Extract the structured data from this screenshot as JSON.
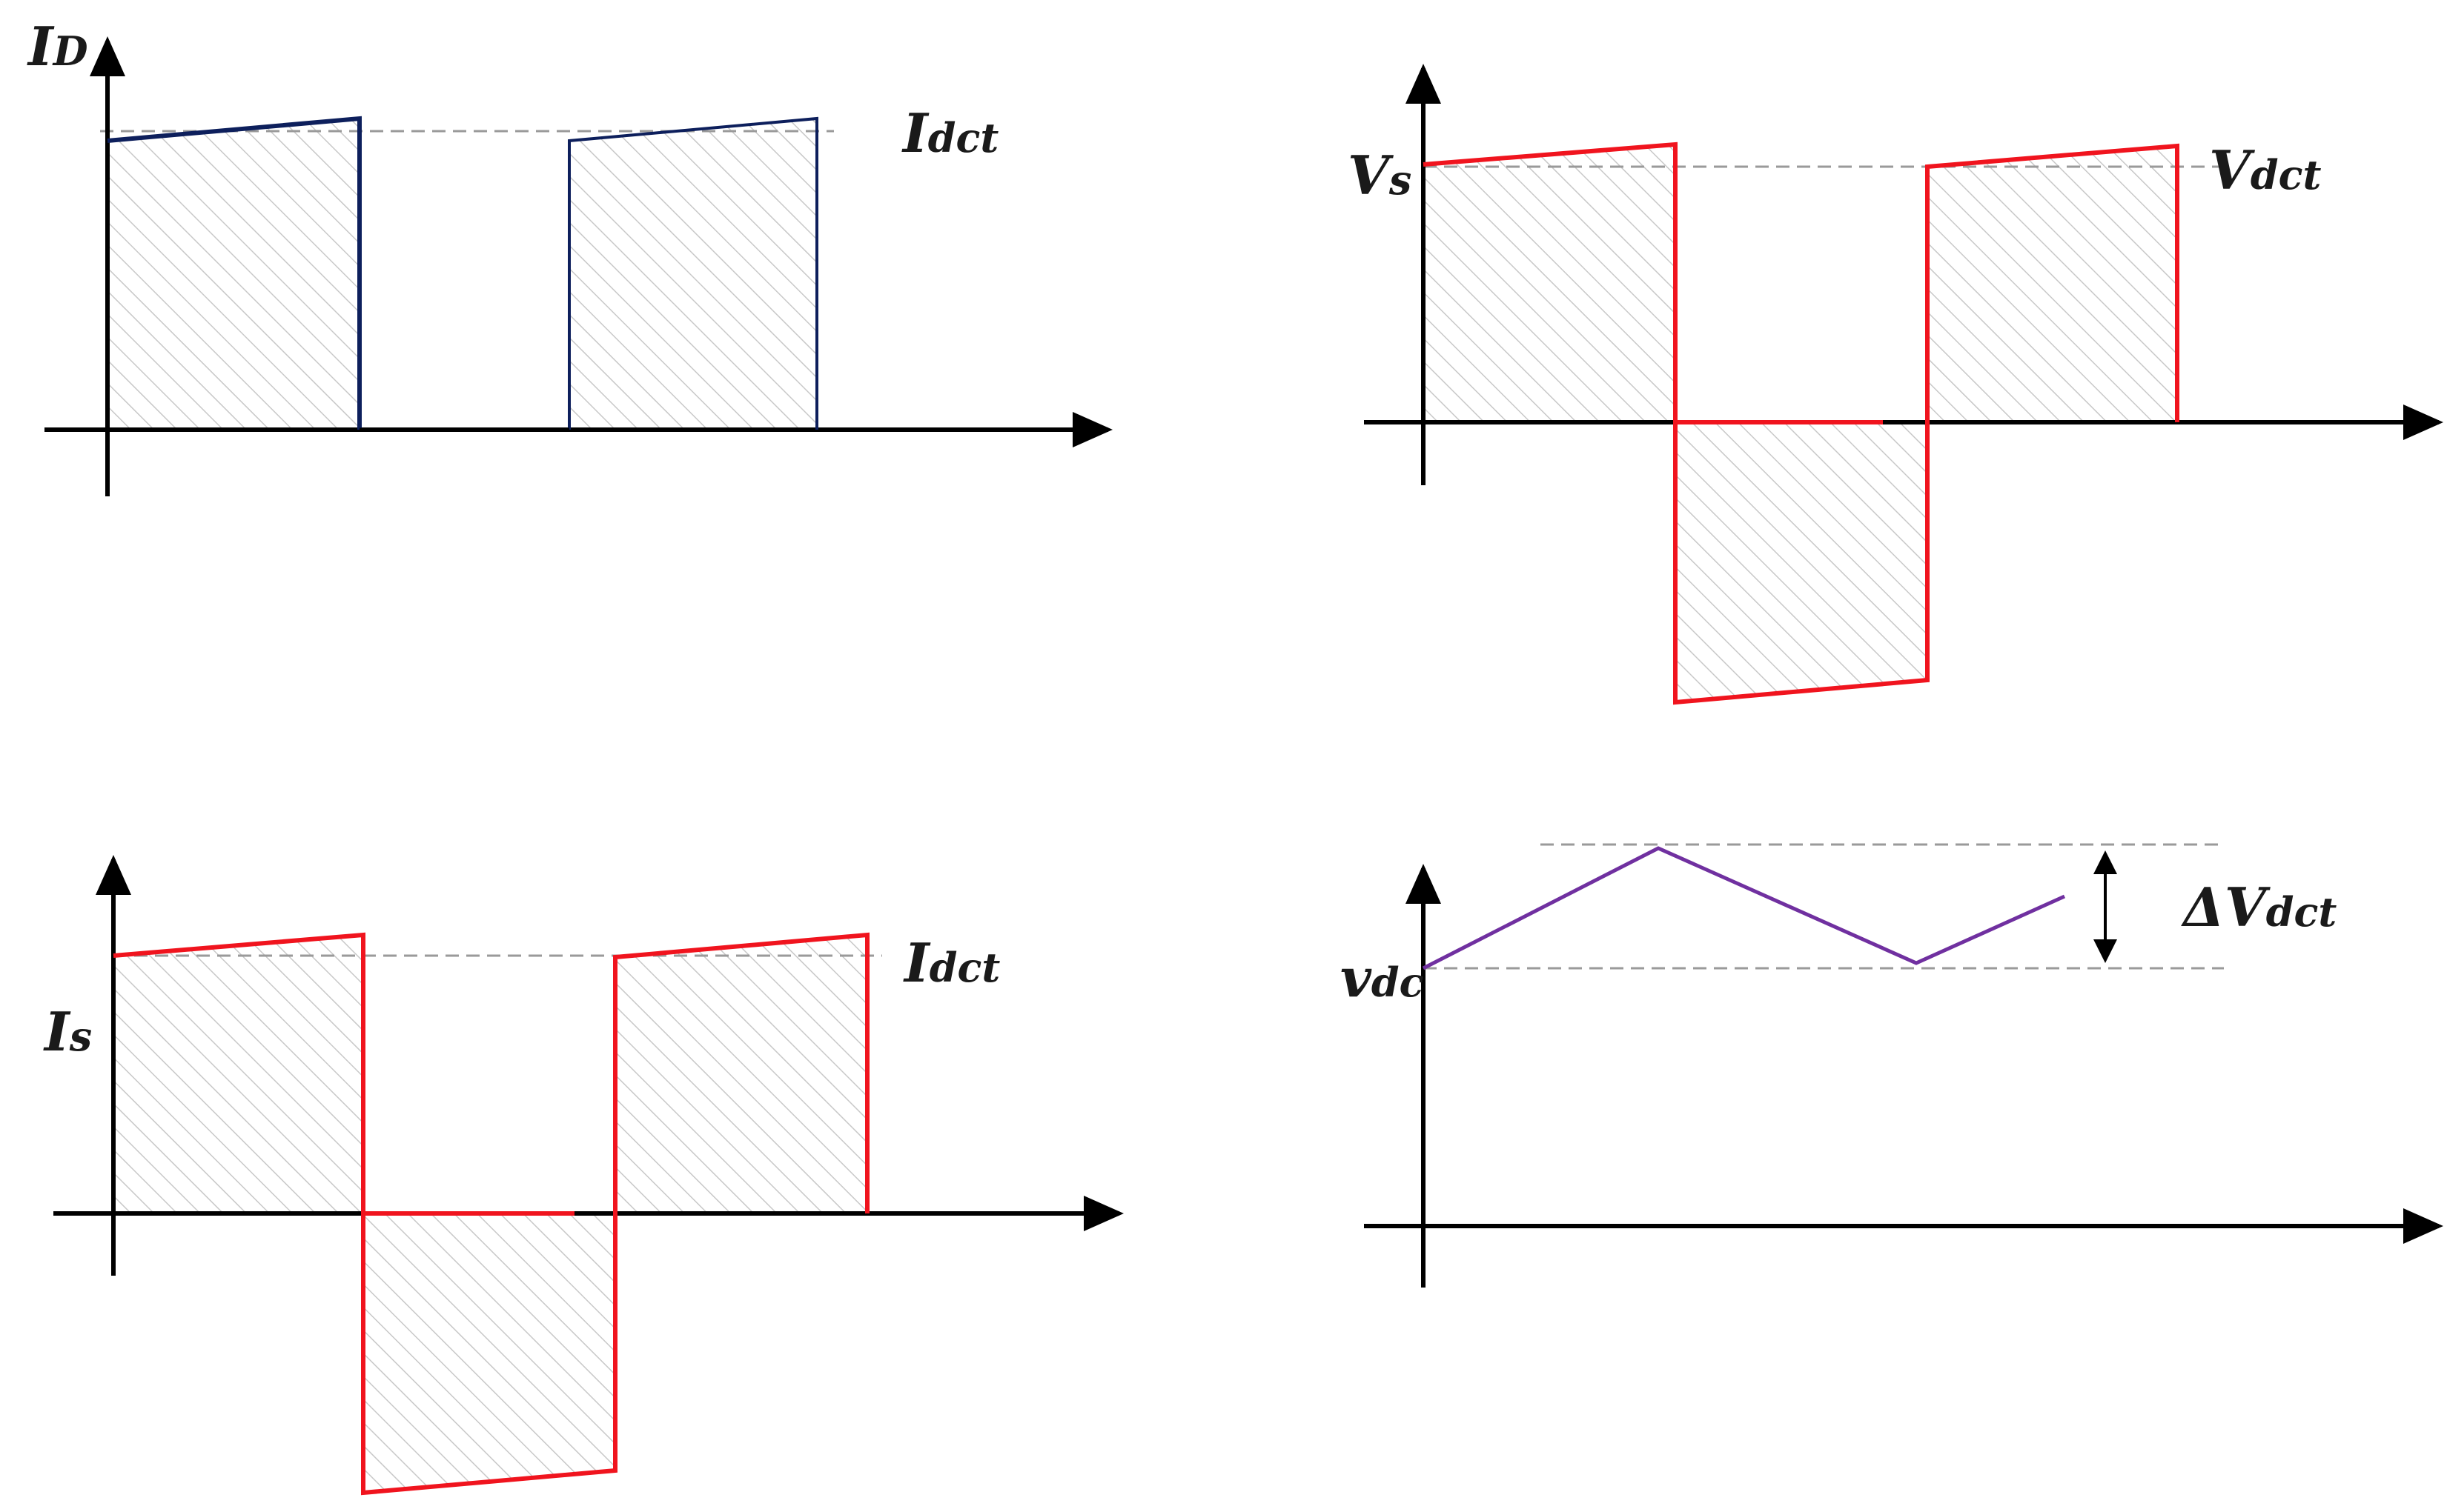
{
  "colors": {
    "trace_red": "#f0141e",
    "trace_navy": "#0d1f5c",
    "trace_purple": "#7030a0",
    "axis": "#000000",
    "reference_dash": "#9a9a9a",
    "hatch": "#c8c8c8"
  },
  "panels": {
    "diode_current": {
      "y_label": {
        "main": "I",
        "sub": "D"
      },
      "ref_label": {
        "main": "I",
        "sub": "dct"
      }
    },
    "source_voltage": {
      "y_label": {
        "main": "V",
        "sub": "s"
      },
      "ref_label": {
        "main": "V",
        "sub": "dct"
      }
    },
    "source_current": {
      "y_label": {
        "main": "I",
        "sub": "s"
      },
      "ref_label": {
        "main": "I",
        "sub": "dct"
      }
    },
    "dc_voltage": {
      "y_label": {
        "main": "v",
        "sub": "dc"
      },
      "ripple_label": {
        "main": "ΔV",
        "sub": "dct"
      }
    }
  }
}
